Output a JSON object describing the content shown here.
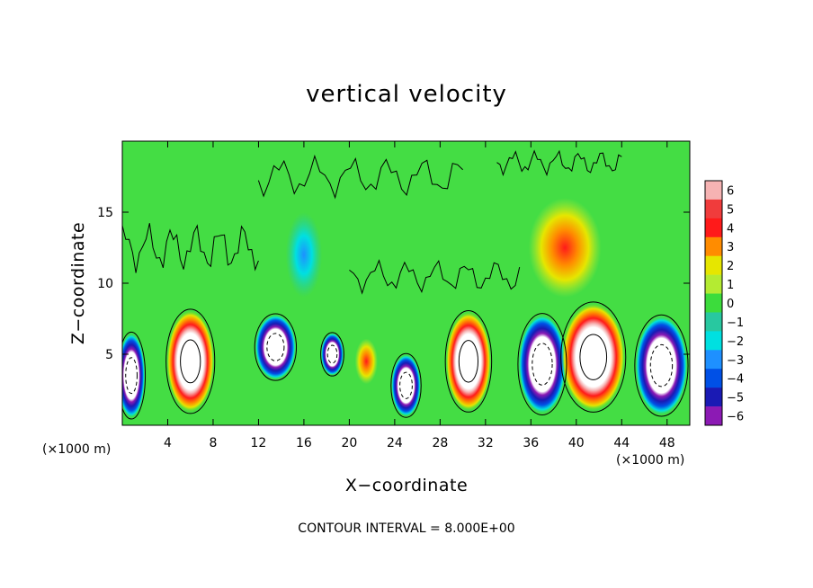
{
  "chart_data": {
    "type": "heatmap",
    "title": "vertical velocity",
    "xlabel": "X−coordinate",
    "ylabel": "Z−coordinate",
    "x_unit_label": "(×1000 m)",
    "x_unit_label_right": "(×1000 m)",
    "footnote": "CONTOUR INTERVAL = 8.000E+00",
    "xlim": [
      0,
      50
    ],
    "ylim": [
      0,
      20
    ],
    "xticks": [
      4,
      8,
      12,
      16,
      20,
      24,
      28,
      32,
      36,
      40,
      44,
      48
    ],
    "xtick_labels": [
      "4",
      "8",
      "12",
      "16",
      "20",
      "24",
      "28",
      "32",
      "36",
      "40",
      "44",
      "48"
    ],
    "yticks": [
      5,
      10,
      15
    ],
    "ytick_labels": [
      "5",
      "10",
      "15"
    ],
    "colorbar": {
      "levels": [
        6,
        5,
        4,
        3,
        2,
        1,
        0,
        -1,
        -2,
        -3,
        -4,
        -5,
        -6
      ],
      "labels": [
        "6",
        "5",
        "4",
        "3",
        "2",
        "1",
        "0",
        "−1",
        "−2",
        "−3",
        "−4",
        "−5",
        "−6"
      ],
      "colors": [
        "#f6b3b3",
        "#f03c3c",
        "#ff1a1a",
        "#ff8c00",
        "#e6e600",
        "#b4eb32",
        "#3cdc3c",
        "#28c8a0",
        "#00e0e0",
        "#1e90ff",
        "#0050e6",
        "#1a1ab4",
        "#8c1ab4"
      ]
    },
    "background_color": "#44dd44",
    "features": [
      {
        "kind": "updraft",
        "x": 6,
        "z": 4.5,
        "rx": 2.1,
        "rz": 3.6
      },
      {
        "kind": "downdraft",
        "x": 13.5,
        "z": 5.5,
        "rx": 1.8,
        "rz": 2.3
      },
      {
        "kind": "downdraft",
        "x": 0.8,
        "z": 3.5,
        "rx": 1.2,
        "rz": 3.0
      },
      {
        "kind": "downdraft",
        "x": 18.5,
        "z": 5.0,
        "rx": 1.0,
        "rz": 1.5
      },
      {
        "kind": "updraft_weak",
        "x": 21.5,
        "z": 4.5,
        "rx": 1.0,
        "rz": 1.6
      },
      {
        "kind": "downdraft",
        "x": 25,
        "z": 2.8,
        "rx": 1.3,
        "rz": 2.2
      },
      {
        "kind": "updraft",
        "x": 30.5,
        "z": 4.5,
        "rx": 2.0,
        "rz": 3.5
      },
      {
        "kind": "downdraft",
        "x": 37,
        "z": 4.3,
        "rx": 2.1,
        "rz": 3.5
      },
      {
        "kind": "updraft",
        "x": 41.5,
        "z": 4.8,
        "rx": 2.8,
        "rz": 3.8
      },
      {
        "kind": "downdraft",
        "x": 47.5,
        "z": 4.2,
        "rx": 2.3,
        "rz": 3.5
      },
      {
        "kind": "updraft_weak",
        "x": 39,
        "z": 12.5,
        "rx": 3.2,
        "rz": 3.5
      },
      {
        "kind": "downdraft_weak",
        "x": 16,
        "z": 12.0,
        "rx": 1.6,
        "rz": 3.0
      }
    ]
  }
}
